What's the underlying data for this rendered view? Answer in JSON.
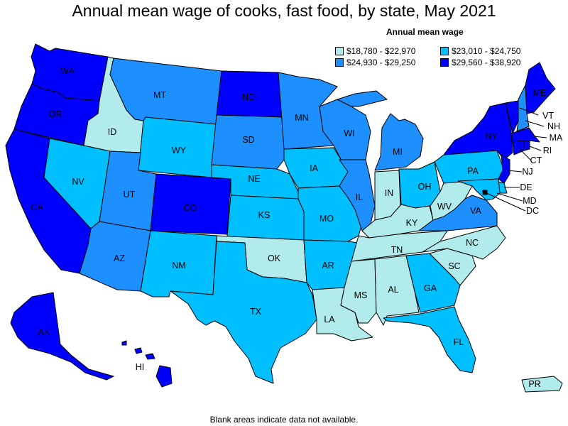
{
  "title": "Annual mean wage of cooks, fast food, by state, May 2021",
  "legend": {
    "title": "Annual mean wage",
    "items": [
      {
        "label": "$18,780 - $22,970",
        "color": "#b2ebeb"
      },
      {
        "label": "$23,010 - $24,750",
        "color": "#00bfff"
      },
      {
        "label": "$24,930 - $29,250",
        "color": "#1e8fff"
      },
      {
        "label": "$29,560 - $38,920",
        "color": "#0000ff"
      }
    ]
  },
  "footnote": "Blank areas indicate data not available.",
  "states": [
    {
      "abbr": "WA",
      "class": 3
    },
    {
      "abbr": "OR",
      "class": 3
    },
    {
      "abbr": "CA",
      "class": 3
    },
    {
      "abbr": "ID",
      "class": 0
    },
    {
      "abbr": "NV",
      "class": 1
    },
    {
      "abbr": "MT",
      "class": 2
    },
    {
      "abbr": "WY",
      "class": 1
    },
    {
      "abbr": "UT",
      "class": 2
    },
    {
      "abbr": "AZ",
      "class": 2
    },
    {
      "abbr": "CO",
      "class": 3
    },
    {
      "abbr": "NM",
      "class": 1
    },
    {
      "abbr": "ND",
      "class": 3
    },
    {
      "abbr": "SD",
      "class": 2
    },
    {
      "abbr": "NE",
      "class": 1
    },
    {
      "abbr": "KS",
      "class": 1
    },
    {
      "abbr": "OK",
      "class": 0
    },
    {
      "abbr": "TX",
      "class": 1
    },
    {
      "abbr": "MN",
      "class": 2
    },
    {
      "abbr": "IA",
      "class": 1
    },
    {
      "abbr": "MO",
      "class": 1
    },
    {
      "abbr": "AR",
      "class": 1
    },
    {
      "abbr": "LA",
      "class": 0
    },
    {
      "abbr": "WI",
      "class": 2
    },
    {
      "abbr": "IL",
      "class": 2
    },
    {
      "abbr": "MI",
      "class": 2
    },
    {
      "abbr": "IN",
      "class": 0
    },
    {
      "abbr": "OH",
      "class": 1
    },
    {
      "abbr": "KY",
      "class": 0
    },
    {
      "abbr": "TN",
      "class": 0
    },
    {
      "abbr": "MS",
      "class": 0
    },
    {
      "abbr": "AL",
      "class": 0
    },
    {
      "abbr": "GA",
      "class": 1
    },
    {
      "abbr": "FL",
      "class": 1
    },
    {
      "abbr": "SC",
      "class": 0
    },
    {
      "abbr": "NC",
      "class": 0
    },
    {
      "abbr": "VA",
      "class": 2
    },
    {
      "abbr": "WV",
      "class": 0
    },
    {
      "abbr": "PA",
      "class": 1
    },
    {
      "abbr": "NY",
      "class": 3
    },
    {
      "abbr": "VT",
      "class": 3
    },
    {
      "abbr": "NH",
      "class": 2
    },
    {
      "abbr": "ME",
      "class": 3
    },
    {
      "abbr": "MA",
      "class": 3
    },
    {
      "abbr": "RI",
      "class": 3
    },
    {
      "abbr": "CT",
      "class": 3
    },
    {
      "abbr": "NJ",
      "class": 3
    },
    {
      "abbr": "DE",
      "class": 1
    },
    {
      "abbr": "MD",
      "class": 1
    },
    {
      "abbr": "DC",
      "class": 3
    },
    {
      "abbr": "AK",
      "class": 3
    },
    {
      "abbr": "HI",
      "class": 3
    },
    {
      "abbr": "PR",
      "class": 0
    }
  ]
}
